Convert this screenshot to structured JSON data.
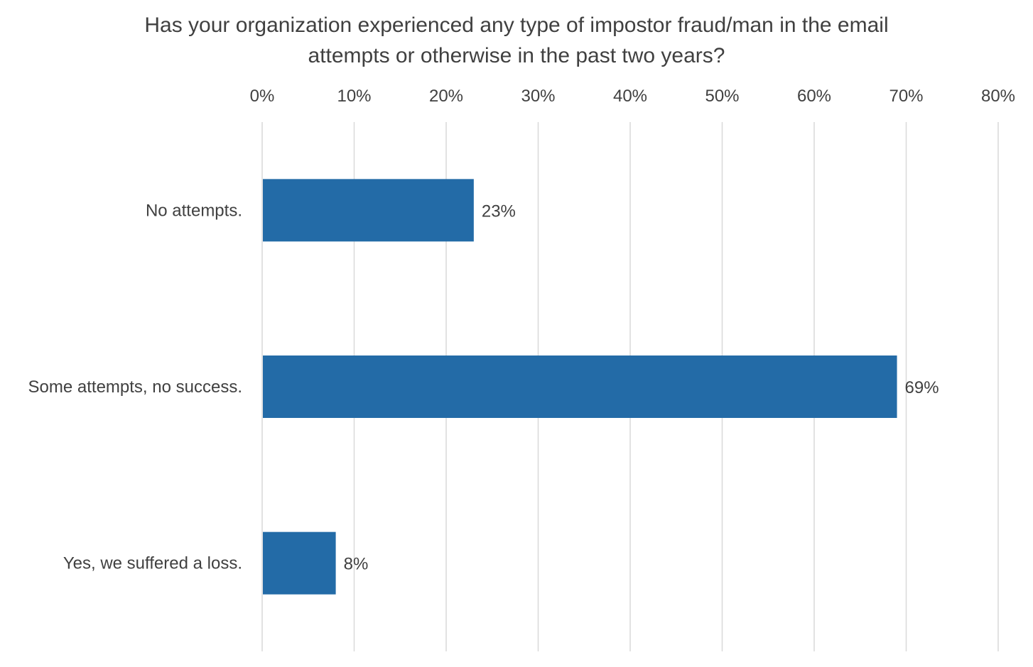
{
  "chart_data": {
    "type": "bar",
    "orientation": "horizontal",
    "title_lines": [
      "Has your organization experienced any type of impostor fraud/man in the email",
      "attempts or otherwise in the past two years?"
    ],
    "categories": [
      "No attempts.",
      "Some attempts, no success.",
      "Yes, we suffered a loss."
    ],
    "values": [
      23,
      69,
      8
    ],
    "data_labels": [
      "23%",
      "69%",
      "8%"
    ],
    "x_ticks": [
      0,
      10,
      20,
      30,
      40,
      50,
      60,
      70,
      80
    ],
    "x_tick_labels": [
      "0%",
      "10%",
      "20%",
      "30%",
      "40%",
      "50%",
      "60%",
      "70%",
      "80%"
    ],
    "xlim": [
      0,
      80
    ],
    "x_axis_position": "top",
    "grid": true,
    "legend": "none",
    "bar_color": "#236ba7",
    "grid_color": "#d9d9d9"
  }
}
